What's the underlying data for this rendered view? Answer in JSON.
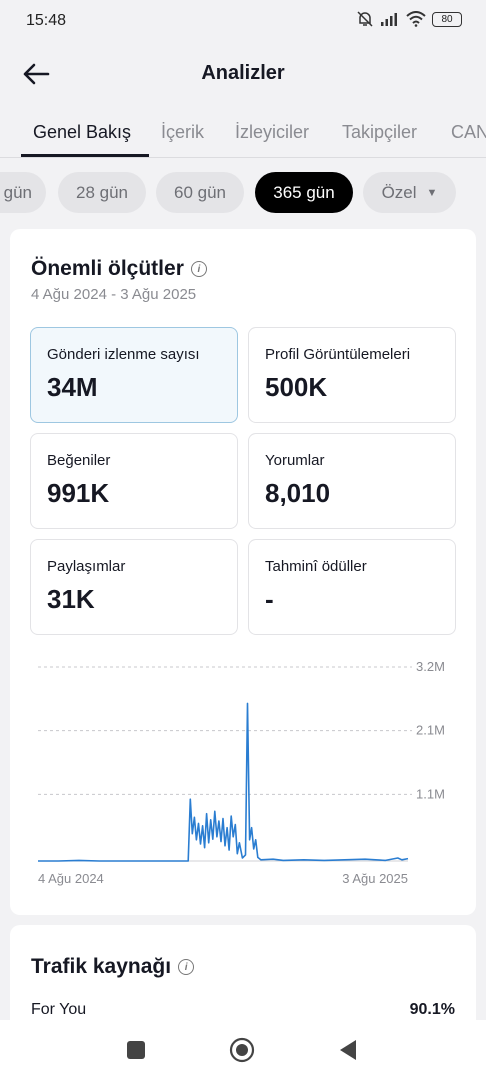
{
  "status_bar": {
    "time": "15:48",
    "battery": "80"
  },
  "header": {
    "title": "Analizler"
  },
  "tabs": [
    {
      "label": "Genel Bakış",
      "active": true
    },
    {
      "label": "İçerik"
    },
    {
      "label": "İzleyiciler"
    },
    {
      "label": "Takipçiler"
    },
    {
      "label": "CAN"
    }
  ],
  "date_filters": [
    {
      "label": "gün"
    },
    {
      "label": "28 gün"
    },
    {
      "label": "60 gün"
    },
    {
      "label": "365 gün",
      "selected": true
    },
    {
      "label": "Özel"
    }
  ],
  "key_metrics": {
    "title": "Önemli ölçütler",
    "date_range": "4 Ağu 2024 - 3 Ağu 2025",
    "cards": [
      {
        "label": "Gönderi izlenme sayısı",
        "value": "34M",
        "selected": true
      },
      {
        "label": "Profil Görüntülemeleri",
        "value": "500K"
      },
      {
        "label": "Beğeniler",
        "value": "991K"
      },
      {
        "label": "Yorumlar",
        "value": "8,010"
      },
      {
        "label": "Paylaşımlar",
        "value": "31K"
      },
      {
        "label": "Tahminî ödüller",
        "value": "-"
      }
    ]
  },
  "chart_data": {
    "type": "line",
    "series": [
      {
        "color": "#2a7dd1",
        "points": [
          [
            0,
            0
          ],
          [
            0.5,
            0
          ],
          [
            1,
            0
          ],
          [
            2,
            0.01
          ],
          [
            3,
            0
          ],
          [
            4,
            0
          ],
          [
            5,
            0
          ],
          [
            6,
            0
          ],
          [
            7,
            0
          ],
          [
            7.35,
            0
          ],
          [
            7.45,
            1.02
          ],
          [
            7.55,
            0.45
          ],
          [
            7.65,
            0.72
          ],
          [
            7.75,
            0.35
          ],
          [
            7.85,
            0.62
          ],
          [
            7.95,
            0.28
          ],
          [
            8.05,
            0.58
          ],
          [
            8.15,
            0.22
          ],
          [
            8.25,
            0.78
          ],
          [
            8.35,
            0.3
          ],
          [
            8.45,
            0.68
          ],
          [
            8.55,
            0.36
          ],
          [
            8.65,
            0.82
          ],
          [
            8.75,
            0.4
          ],
          [
            8.85,
            0.66
          ],
          [
            8.95,
            0.32
          ],
          [
            9.05,
            0.7
          ],
          [
            9.15,
            0.25
          ],
          [
            9.25,
            0.55
          ],
          [
            9.35,
            0.18
          ],
          [
            9.45,
            0.74
          ],
          [
            9.55,
            0.4
          ],
          [
            9.65,
            0.6
          ],
          [
            9.75,
            0.12
          ],
          [
            9.85,
            0.3
          ],
          [
            10.0,
            0.05
          ],
          [
            10.15,
            0.1
          ],
          [
            10.25,
            2.6
          ],
          [
            10.35,
            0.35
          ],
          [
            10.45,
            0.55
          ],
          [
            10.55,
            0.2
          ],
          [
            10.65,
            0.35
          ],
          [
            10.75,
            0.06
          ],
          [
            10.9,
            0.02
          ],
          [
            11.5,
            0.03
          ],
          [
            12,
            0.01
          ],
          [
            13,
            0.02
          ],
          [
            14,
            0.01
          ],
          [
            15,
            0.02
          ],
          [
            16,
            0.03
          ],
          [
            17,
            0.01
          ],
          [
            17.6,
            0.05
          ],
          [
            17.8,
            0.02
          ],
          [
            18.1,
            0.04
          ]
        ]
      }
    ],
    "x_labels": [
      "4 Ağu 2024",
      "3 Ağu 2025"
    ],
    "y_ticks": [
      "3.2M",
      "2.1M",
      "1.1M"
    ],
    "x_range": [
      0,
      18.1
    ],
    "ylim": [
      0,
      3.2
    ],
    "grid": true
  },
  "traffic": {
    "title": "Trafik kaynağı",
    "rows": [
      {
        "source": "For You",
        "percent": "90.1%"
      }
    ]
  },
  "colors": {
    "accent": "#2a7dd1",
    "selected_card_bg": "#f2f8fc"
  }
}
